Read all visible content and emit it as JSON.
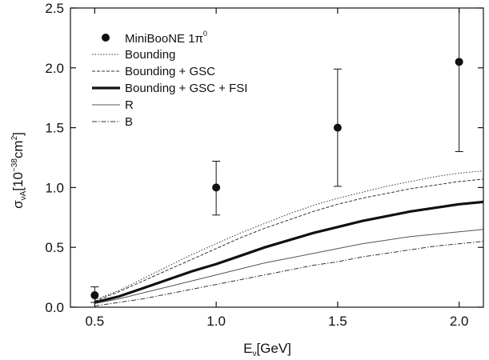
{
  "chart_data": {
    "type": "scatter",
    "xlabel": {
      "main": "E",
      "sub": "ν",
      "unit": "[GeV]"
    },
    "ylabel": {
      "main": "σ",
      "sub": "νA",
      "unit_pre": "[10",
      "unit_exp": "−38",
      "unit_mid": "cm",
      "unit_exp2": "2",
      "unit_post": "]"
    },
    "xlim": [
      0.4,
      2.1
    ],
    "ylim": [
      0,
      2.5
    ],
    "xticks": [
      {
        "value": 0.5,
        "label": "0.5"
      },
      {
        "value": 1.0,
        "label": "1.0"
      },
      {
        "value": 1.5,
        "label": "1.5"
      },
      {
        "value": 2.0,
        "label": "2.0"
      }
    ],
    "yticks": [
      {
        "value": 0.0,
        "label": "0.0"
      },
      {
        "value": 0.5,
        "label": "0.5"
      },
      {
        "value": 1.0,
        "label": "1.0"
      },
      {
        "value": 1.5,
        "label": "1.5"
      },
      {
        "value": 2.0,
        "label": "2.0"
      },
      {
        "value": 2.5,
        "label": "2.5"
      }
    ],
    "grid": false,
    "legend_position": "top-left",
    "data_points": {
      "name": "MiniBooNE 1π",
      "name_sup": "0",
      "points": [
        {
          "x": 0.5,
          "y": 0.1,
          "err_low": 0.04,
          "err_high": 0.17
        },
        {
          "x": 1.0,
          "y": 1.0,
          "err_low": 0.77,
          "err_high": 1.22
        },
        {
          "x": 1.5,
          "y": 1.5,
          "err_low": 1.01,
          "err_high": 1.99
        },
        {
          "x": 2.0,
          "y": 2.05,
          "err_low": 1.3,
          "err_high": 2.5
        }
      ]
    },
    "series": [
      {
        "name": "Bounding",
        "style": "dotted",
        "color": "#333333",
        "x": [
          0.5,
          0.6,
          0.7,
          0.8,
          0.9,
          1.0,
          1.1,
          1.2,
          1.3,
          1.4,
          1.5,
          1.6,
          1.7,
          1.8,
          1.9,
          2.0,
          2.1
        ],
        "y": [
          0.06,
          0.14,
          0.24,
          0.34,
          0.44,
          0.53,
          0.62,
          0.7,
          0.78,
          0.85,
          0.91,
          0.96,
          1.01,
          1.05,
          1.09,
          1.12,
          1.14
        ]
      },
      {
        "name": "Bounding + GSC",
        "style": "dashed",
        "color": "#333333",
        "x": [
          0.5,
          0.6,
          0.7,
          0.8,
          0.9,
          1.0,
          1.1,
          1.2,
          1.3,
          1.4,
          1.5,
          1.6,
          1.7,
          1.8,
          1.9,
          2.0,
          2.1
        ],
        "y": [
          0.05,
          0.13,
          0.22,
          0.31,
          0.4,
          0.49,
          0.58,
          0.66,
          0.73,
          0.8,
          0.86,
          0.91,
          0.95,
          0.99,
          1.02,
          1.05,
          1.07
        ]
      },
      {
        "name": "Bounding + GSC + FSI",
        "style": "thick",
        "color": "#111111",
        "x": [
          0.5,
          0.6,
          0.7,
          0.8,
          0.9,
          1.0,
          1.1,
          1.2,
          1.3,
          1.4,
          1.5,
          1.6,
          1.7,
          1.8,
          1.9,
          2.0,
          2.1
        ],
        "y": [
          0.04,
          0.09,
          0.16,
          0.23,
          0.3,
          0.36,
          0.43,
          0.5,
          0.56,
          0.62,
          0.67,
          0.72,
          0.76,
          0.8,
          0.83,
          0.86,
          0.88
        ]
      },
      {
        "name": "R",
        "style": "solid",
        "color": "#555555",
        "x": [
          0.5,
          0.6,
          0.7,
          0.8,
          0.9,
          1.0,
          1.1,
          1.2,
          1.3,
          1.4,
          1.5,
          1.6,
          1.7,
          1.8,
          1.9,
          2.0,
          2.1
        ],
        "y": [
          0.03,
          0.07,
          0.12,
          0.17,
          0.22,
          0.27,
          0.32,
          0.37,
          0.41,
          0.45,
          0.49,
          0.53,
          0.56,
          0.59,
          0.61,
          0.63,
          0.65
        ]
      },
      {
        "name": "B",
        "style": "dashdot",
        "color": "#333333",
        "x": [
          0.5,
          0.6,
          0.7,
          0.8,
          0.9,
          1.0,
          1.1,
          1.2,
          1.3,
          1.4,
          1.5,
          1.6,
          1.7,
          1.8,
          1.9,
          2.0,
          2.1
        ],
        "y": [
          0.01,
          0.04,
          0.07,
          0.11,
          0.15,
          0.19,
          0.23,
          0.27,
          0.31,
          0.35,
          0.38,
          0.42,
          0.45,
          0.48,
          0.51,
          0.53,
          0.55
        ]
      }
    ]
  }
}
